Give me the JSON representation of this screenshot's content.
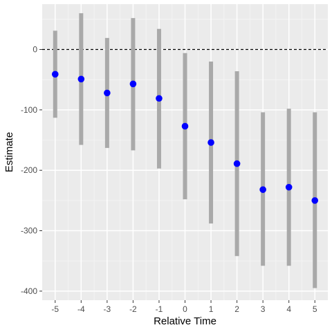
{
  "chart_data": {
    "type": "scatter",
    "subtype": "coefficient-plot-with-error-bars",
    "title": "",
    "xlabel": "Relative Time",
    "ylabel": "Estimate",
    "x": [
      -5,
      -4,
      -3,
      -2,
      -1,
      0,
      1,
      2,
      3,
      4,
      5
    ],
    "estimate": [
      -41,
      -49,
      -72,
      -57,
      -81,
      -127,
      -154,
      -189,
      -232,
      -228,
      -250
    ],
    "lower": [
      -113,
      -158,
      -163,
      -167,
      -197,
      -248,
      -288,
      -342,
      -358,
      -358,
      -395
    ],
    "upper": [
      31,
      60,
      19,
      52,
      34,
      -6,
      -20,
      -36,
      -104,
      -98,
      -104
    ],
    "x_ticks": [
      "-5",
      "-4",
      "-3",
      "-2",
      "-1",
      "0",
      "1",
      "2",
      "3",
      "4",
      "5"
    ],
    "y_ticks": [
      {
        "value": 0,
        "label": "0"
      },
      {
        "value": -100,
        "label": "-100"
      },
      {
        "value": -200,
        "label": "-200"
      },
      {
        "value": -300,
        "label": "-300"
      },
      {
        "value": -400,
        "label": "-400"
      }
    ],
    "xlim": [
      -5.5,
      5.5
    ],
    "ylim": [
      -415,
      75
    ],
    "reference_line": {
      "y": 0,
      "style": "dashed",
      "color": "#000000"
    },
    "grid": true,
    "legend": "none",
    "colors": {
      "panel": "#ebebeb",
      "grid_major": "#ffffff",
      "grid_minor": "#f5f5f5",
      "point": "#0000ff",
      "error_bar": "#a9a9a9",
      "tick_text": "#4d4d4d",
      "title_text": "#000000"
    }
  }
}
